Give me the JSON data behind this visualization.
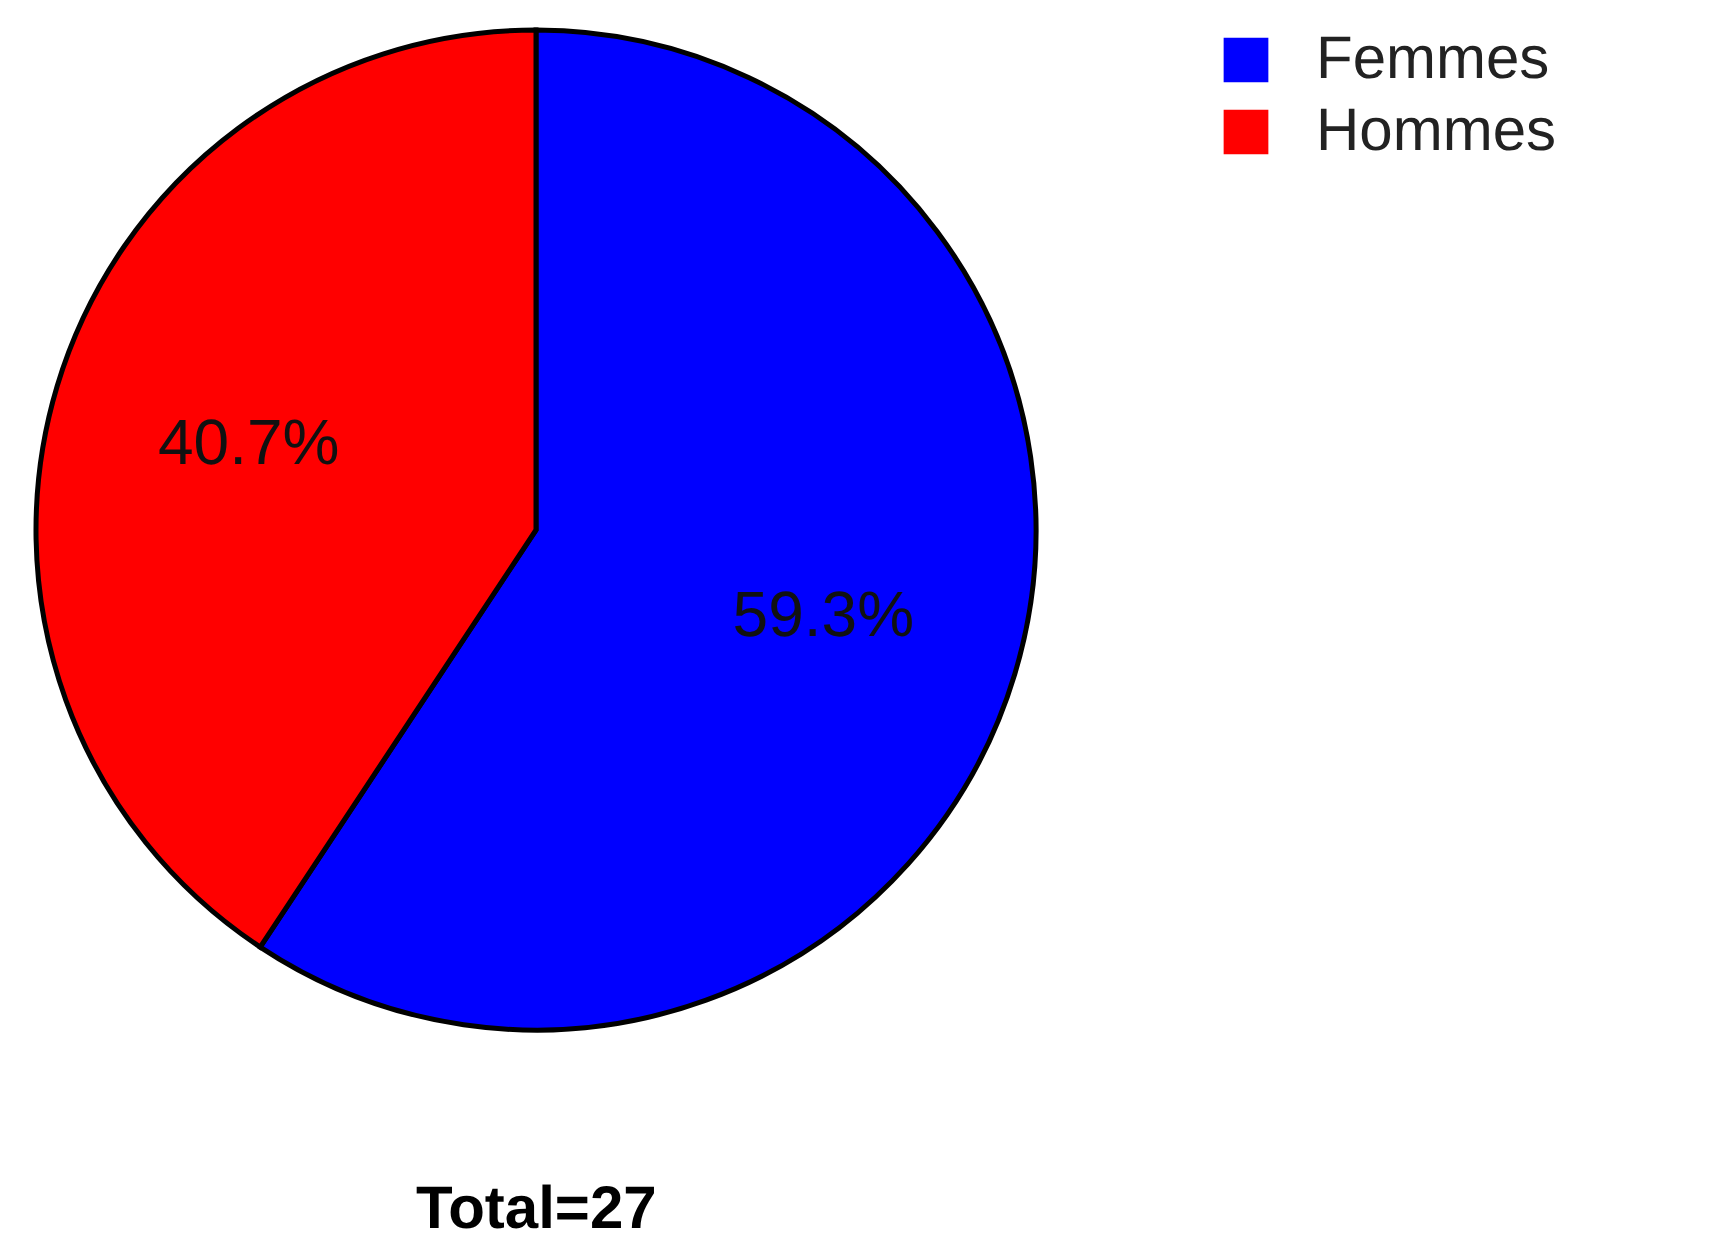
{
  "chart_data": {
    "type": "pie",
    "categories": [
      "Femmes",
      "Hommes"
    ],
    "values": [
      59.3,
      40.7
    ],
    "colors": [
      "#0000ff",
      "#ff0000"
    ],
    "value_labels": [
      "59.3%",
      "40.7%"
    ],
    "legend": "top right",
    "annotations": [
      "Total=27"
    ]
  }
}
